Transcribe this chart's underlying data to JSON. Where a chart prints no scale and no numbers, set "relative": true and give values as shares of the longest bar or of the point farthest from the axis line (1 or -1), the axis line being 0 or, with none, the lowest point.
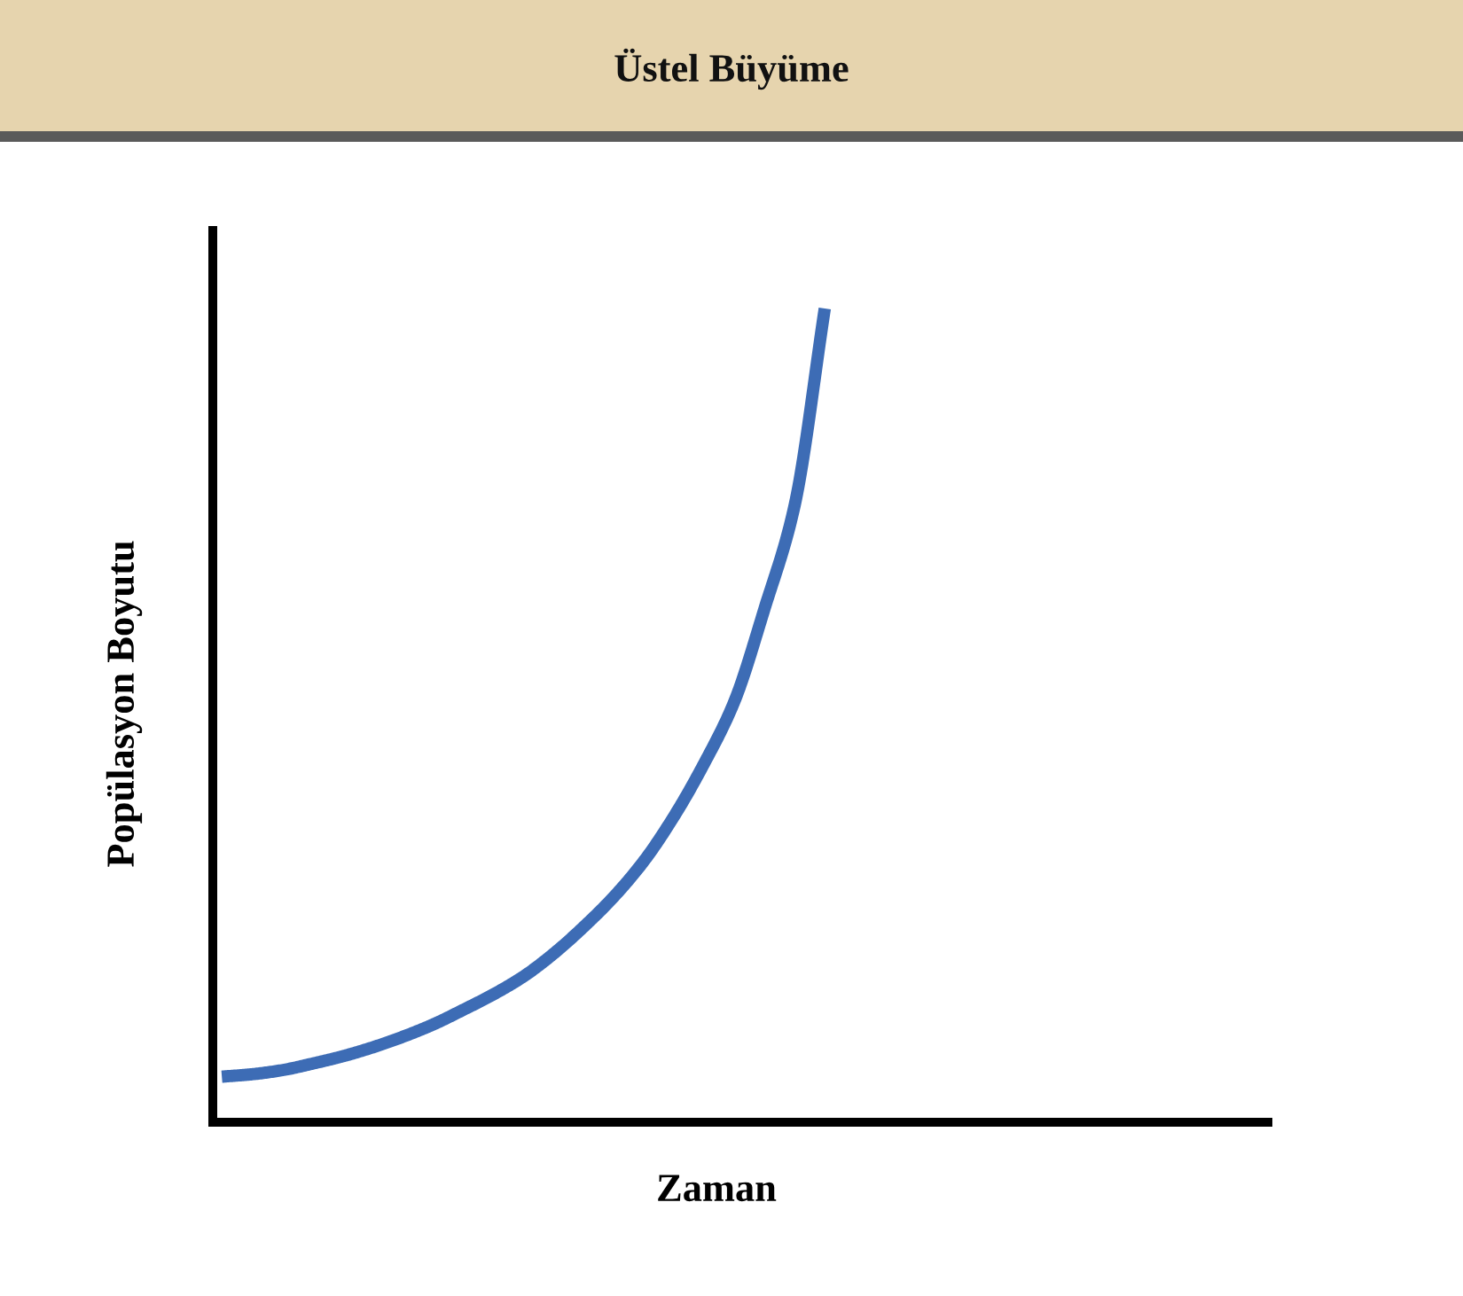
{
  "chart_data": {
    "type": "line",
    "title": "Üstel Büyüme",
    "xlabel": "Zaman",
    "ylabel": "Popülasyon Boyutu",
    "relative": true,
    "marker": "none",
    "line_style": "solid",
    "categories": [
      null,
      null,
      null,
      null,
      null,
      null,
      null,
      null,
      null,
      null,
      null,
      null,
      null,
      null,
      null,
      null,
      null,
      null,
      null,
      null,
      null,
      null,
      null,
      null,
      null,
      null,
      null,
      null,
      null,
      null,
      null,
      null,
      null,
      null,
      null
    ],
    "series": [
      {
        "color": "#3d6cb5",
        "values": [
          0.056,
          0.059,
          0.064,
          0.072,
          0.081,
          0.092,
          0.105,
          0.12,
          0.138,
          0.157,
          0.179,
          0.207,
          0.24,
          0.277,
          0.321,
          0.376,
          0.441,
          0.517,
          0.631,
          0.758,
          1,
          null,
          null,
          null,
          null,
          null,
          null,
          null,
          null,
          null,
          null,
          null,
          null,
          null,
          null
        ]
      }
    ]
  }
}
